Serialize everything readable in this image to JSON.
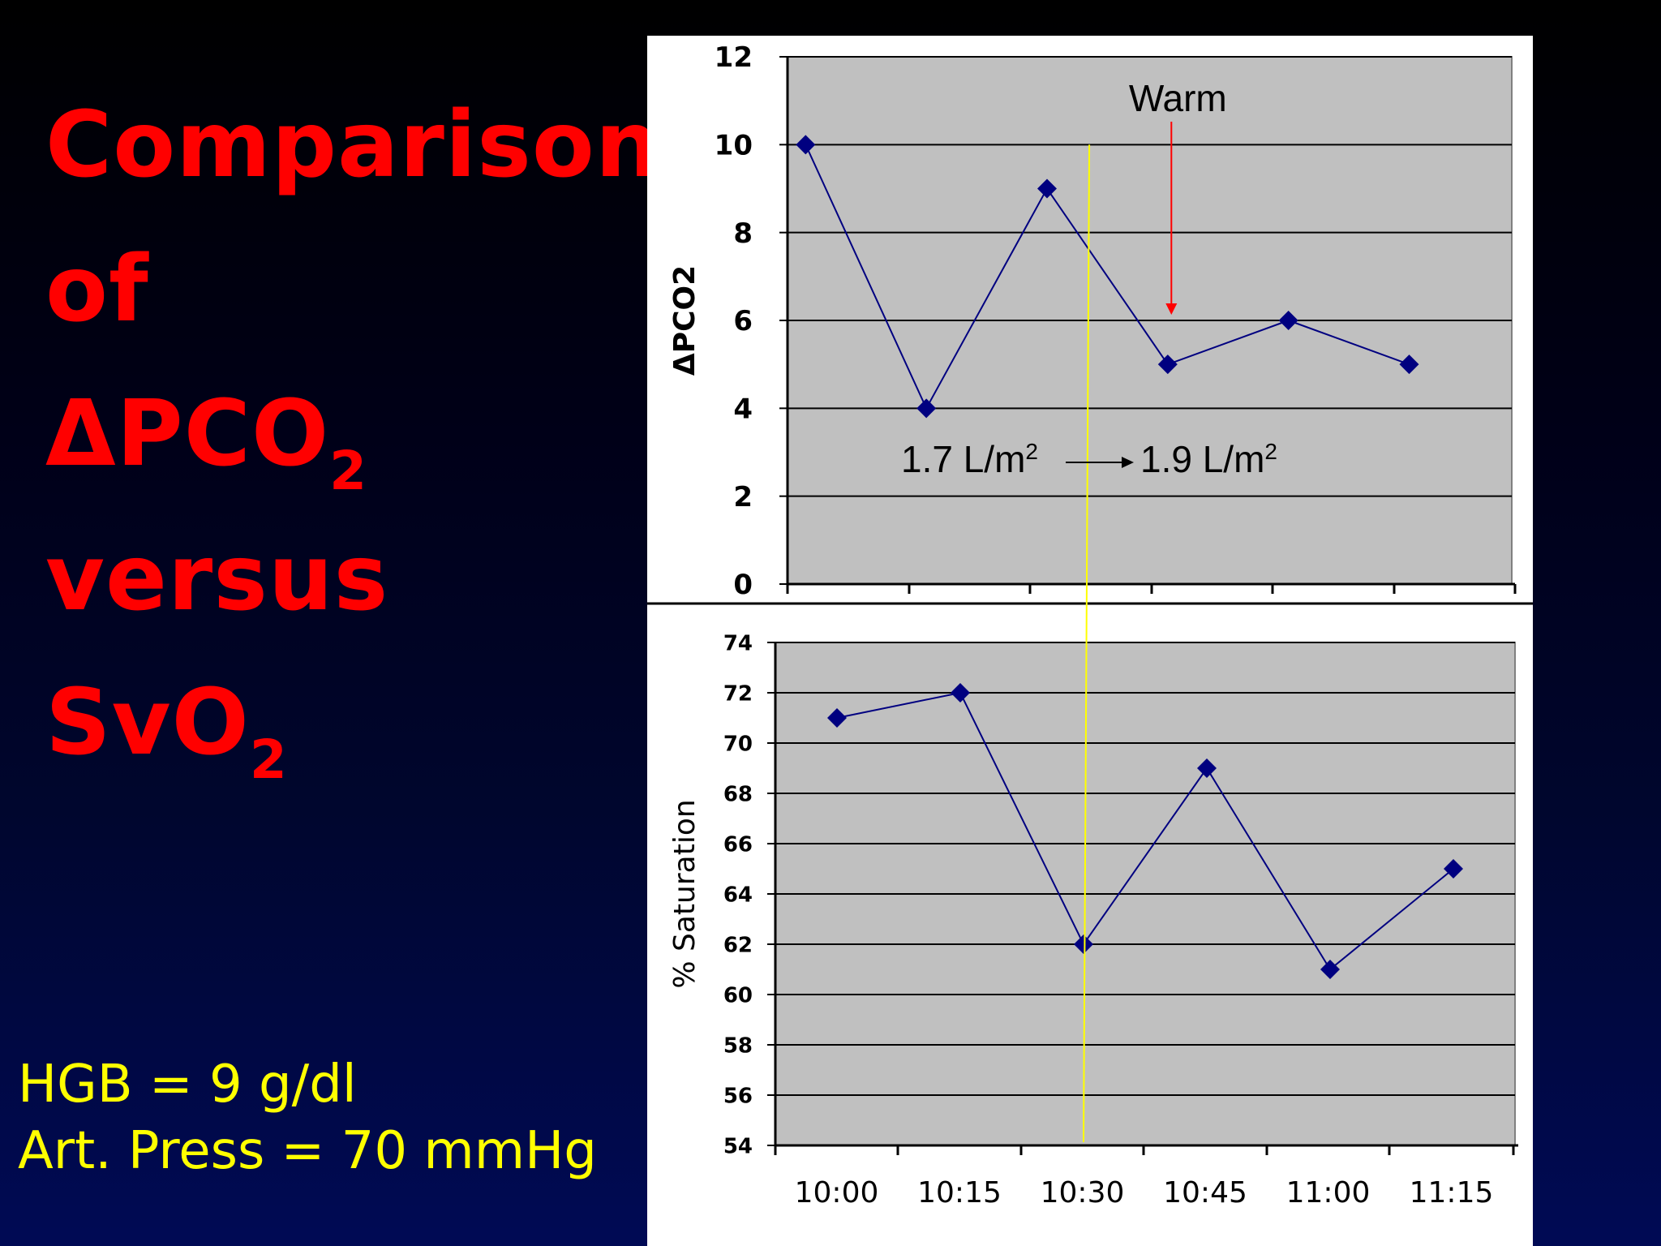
{
  "slide": {
    "title_lines": [
      {
        "main": "Comparison",
        "sub": ""
      },
      {
        "main": "of",
        "sub": ""
      },
      {
        "main": "ΔPCO",
        "sub": "2"
      },
      {
        "main": "versus",
        "sub": ""
      },
      {
        "main": "SvO",
        "sub": "2"
      }
    ],
    "notes": [
      "HGB = 9 g/dl",
      "Art. Press = 70 mmHg"
    ]
  },
  "colors": {
    "title": "#ff0000",
    "notes": "#ffff00",
    "plot_area": "#c0c0c0",
    "series": "#000080",
    "marker_line": "#ffff00",
    "warm_arrow": "#ff0000"
  },
  "chart_data": [
    {
      "type": "line",
      "categories": [
        "10:00",
        "10:15",
        "10:30",
        "10:45",
        "11:00",
        "11:15"
      ],
      "x": [
        0.15,
        1.15,
        2.15,
        3.15,
        4.15,
        5.15
      ],
      "values": [
        10,
        4,
        9,
        5,
        6,
        5
      ],
      "ylabel": "ΔPCO2",
      "ylim": [
        0,
        12
      ],
      "yticks": [
        0,
        2,
        4,
        6,
        8,
        10,
        12
      ],
      "grid": true,
      "marker": "diamond",
      "annotations": {
        "warm_label": "Warm",
        "warm_x": 3.18,
        "from_label": "1.7 L/m",
        "to_label": "1.9 L/m",
        "unit_sup": "2",
        "vertical_marker_x": 2.5
      }
    },
    {
      "type": "line",
      "categories": [
        "10:00",
        "10:15",
        "10:30",
        "10:45",
        "11:00",
        "11:15"
      ],
      "x": [
        0.5,
        1.5,
        2.5,
        3.5,
        4.5,
        5.5
      ],
      "values": [
        71,
        72,
        62,
        69,
        61,
        65
      ],
      "ylabel": "% Saturation",
      "ylim": [
        54,
        74
      ],
      "yticks": [
        54,
        56,
        58,
        60,
        62,
        64,
        66,
        68,
        70,
        72,
        74
      ],
      "grid": true,
      "marker": "diamond",
      "vertical_marker_x": 2.5
    }
  ]
}
